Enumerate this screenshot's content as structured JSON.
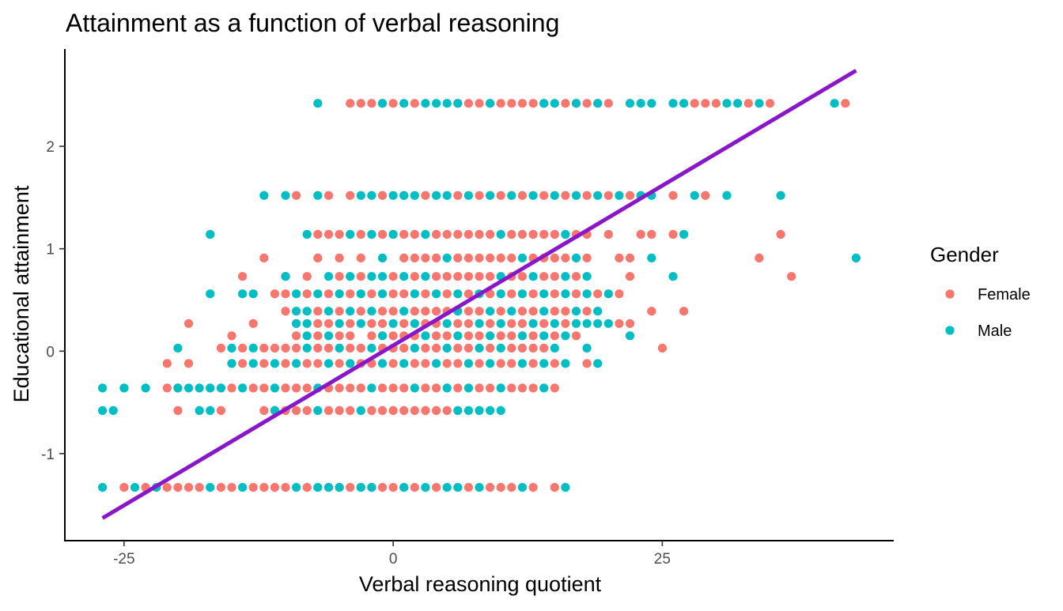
{
  "chart_data": {
    "type": "scatter",
    "title": "Attainment as a function of verbal reasoning",
    "xlabel": "Verbal reasoning quotient",
    "ylabel": "Educational attainment",
    "xlim": [
      -30.5,
      46.5
    ],
    "ylim": [
      -1.85,
      2.95
    ],
    "x_ticks": [
      {
        "value": -25,
        "label": "-25"
      },
      {
        "value": 0,
        "label": "0"
      },
      {
        "value": 25,
        "label": "25"
      }
    ],
    "y_ticks": [
      {
        "value": -1,
        "label": "-1"
      },
      {
        "value": 0,
        "label": "0"
      },
      {
        "value": 1,
        "label": "1"
      },
      {
        "value": 2,
        "label": "2"
      }
    ],
    "grid": false,
    "legend": {
      "title": "Gender",
      "placement": "right",
      "entries": [
        {
          "label": "Female",
          "color": "#F8766D"
        },
        {
          "label": "Male",
          "color": "#00BFC4"
        }
      ]
    },
    "trend_line": {
      "color": "#8A16C9",
      "x": [
        -27,
        43
      ],
      "y": [
        -1.63,
        2.74
      ]
    },
    "series": [
      {
        "name": "Female",
        "color": "#F8766D",
        "levels": [
          {
            "y": 2.42,
            "x": [
              -4,
              -3,
              -2,
              -1,
              0,
              2,
              6,
              7,
              8,
              9,
              10,
              11,
              12,
              13,
              14,
              16,
              17,
              18,
              19,
              20,
              28,
              29,
              30,
              33,
              35,
              42
            ]
          },
          {
            "y": 1.52,
            "x": [
              -9,
              -6,
              -4,
              -1,
              1,
              3,
              6,
              8,
              10,
              12,
              14,
              16,
              18,
              20,
              22,
              26,
              29
            ]
          },
          {
            "y": 1.14,
            "x": [
              -7,
              -6,
              -5,
              -3,
              -1,
              0,
              1,
              2,
              4,
              5,
              6,
              7,
              8,
              9,
              11,
              12,
              13,
              14,
              15,
              17,
              18,
              20,
              23,
              24,
              26,
              36
            ]
          },
          {
            "y": 0.91,
            "x": [
              -12,
              -7,
              -5,
              -3,
              1,
              2,
              3,
              4,
              6,
              7,
              8,
              9,
              10,
              11,
              13,
              14,
              15,
              16,
              18,
              21,
              22,
              34
            ]
          },
          {
            "y": 0.73,
            "x": [
              -14,
              -10,
              -8,
              -5,
              -3,
              0,
              2,
              4,
              5,
              6,
              7,
              8,
              9,
              11,
              12,
              14,
              15,
              17,
              22,
              37
            ]
          },
          {
            "y": 0.56,
            "x": [
              -11,
              -10,
              -8,
              -6,
              -4,
              -2,
              0,
              1,
              3,
              5,
              7,
              9,
              11,
              13,
              15,
              17,
              19,
              21
            ]
          },
          {
            "y": 0.39,
            "x": [
              -10,
              -7,
              -5,
              -3,
              -1,
              0,
              2,
              3,
              4,
              5,
              7,
              8,
              10,
              12,
              13,
              15,
              16,
              18,
              24,
              27
            ]
          },
          {
            "y": 0.27,
            "x": [
              -19,
              -13,
              -9,
              -7,
              -6,
              -4,
              -2,
              -1,
              1,
              3,
              4,
              6,
              7,
              9,
              11,
              12,
              14,
              16,
              21,
              22
            ]
          },
          {
            "y": 0.15,
            "x": [
              -15,
              -9,
              -7,
              -5,
              -4,
              -2,
              0,
              1,
              2,
              4,
              5,
              7,
              8,
              10,
              11,
              13,
              15,
              17
            ]
          },
          {
            "y": 0.03,
            "x": [
              -16,
              -14,
              -12,
              -11,
              -10,
              -9,
              -7,
              -6,
              -4,
              -3,
              -1,
              0,
              1,
              3,
              4,
              6,
              7,
              9,
              11,
              12,
              13,
              14,
              25
            ]
          },
          {
            "y": -0.12,
            "x": [
              -21,
              -19,
              -15,
              -14,
              -12,
              -10,
              -8,
              -7,
              -5,
              -3,
              -2,
              0,
              2,
              3,
              5,
              6,
              8,
              10,
              11,
              13,
              15,
              18
            ]
          },
          {
            "y": -0.36,
            "x": [
              -21,
              -20,
              -17,
              -15,
              -13,
              -12,
              -10,
              -9,
              -8,
              -6,
              -5,
              -4,
              -3,
              -1,
              0,
              1,
              3,
              4,
              6,
              8,
              9,
              11,
              12,
              13,
              15
            ]
          },
          {
            "y": -0.58,
            "x": [
              -20,
              -16,
              -12,
              -10,
              -9,
              -8,
              -6,
              -5,
              -4,
              -2,
              -1,
              0,
              1,
              2,
              3,
              4,
              5
            ]
          },
          {
            "y": -1.33,
            "x": [
              -25,
              -23,
              -21,
              -20,
              -19,
              -18,
              -16,
              -15,
              -13,
              -12,
              -11,
              -10,
              -8,
              -6,
              -5,
              -4,
              -3,
              -2,
              -1,
              0,
              1,
              2,
              4,
              7,
              9,
              10,
              11,
              13,
              15
            ]
          }
        ]
      },
      {
        "name": "Male",
        "color": "#00BFC4",
        "levels": [
          {
            "y": 2.42,
            "x": [
              -7,
              -1,
              1,
              3,
              4,
              5,
              6,
              9,
              14,
              15,
              17,
              19,
              22,
              23,
              24,
              26,
              27,
              31,
              32,
              34,
              41
            ]
          },
          {
            "y": 1.52,
            "x": [
              -12,
              -10,
              -7,
              -3,
              -2,
              0,
              1,
              2,
              4,
              5,
              7,
              9,
              11,
              13,
              15,
              17,
              19,
              21,
              23,
              24,
              28,
              31,
              36
            ]
          },
          {
            "y": 1.14,
            "x": [
              -17,
              -8,
              -4,
              -2,
              0,
              3,
              10,
              16,
              27
            ]
          },
          {
            "y": 0.91,
            "x": [
              -1,
              5,
              12,
              17,
              24,
              43
            ]
          },
          {
            "y": 0.73,
            "x": [
              -10,
              -6,
              -4,
              -2,
              -1,
              1,
              3,
              10,
              13,
              16,
              18,
              26
            ]
          },
          {
            "y": 0.56,
            "x": [
              -17,
              -14,
              -13,
              -9,
              -7,
              -5,
              -3,
              -1,
              2,
              4,
              6,
              8,
              10,
              12,
              14,
              16,
              18,
              20
            ]
          },
          {
            "y": 0.39,
            "x": [
              -9,
              -8,
              -6,
              -4,
              -2,
              1,
              6,
              9,
              11,
              14,
              17,
              19
            ]
          },
          {
            "y": 0.27,
            "x": [
              -9,
              -8,
              -5,
              -3,
              0,
              2,
              5,
              8,
              10,
              13,
              15,
              17,
              18,
              19,
              20
            ]
          },
          {
            "y": 0.15,
            "x": [
              -8,
              -6,
              -1,
              3,
              6,
              9,
              12,
              14,
              16,
              22
            ]
          },
          {
            "y": 0.03,
            "x": [
              -20,
              -15,
              -13,
              -8,
              -5,
              -2,
              2,
              5,
              8,
              10,
              15,
              18
            ]
          },
          {
            "y": -0.12,
            "x": [
              -15,
              -13,
              -11,
              -9,
              -6,
              -4,
              -1,
              1,
              4,
              7,
              9,
              12,
              14,
              16,
              19
            ]
          },
          {
            "y": -0.36,
            "x": [
              -27,
              -25,
              -23,
              -20,
              -19,
              -18,
              -17,
              -16,
              -14,
              -11,
              -7,
              -2,
              2,
              5,
              7,
              10,
              14
            ]
          },
          {
            "y": -0.58,
            "x": [
              -27,
              -26,
              -18,
              -17,
              -11,
              -7,
              -3,
              6,
              7,
              8,
              9,
              10
            ]
          },
          {
            "y": -1.33,
            "x": [
              -27,
              -24,
              -22,
              -17,
              -14,
              -9,
              -7,
              -6,
              -5,
              -3,
              -2,
              1,
              3,
              5,
              6,
              8,
              12,
              16
            ]
          }
        ]
      }
    ]
  }
}
